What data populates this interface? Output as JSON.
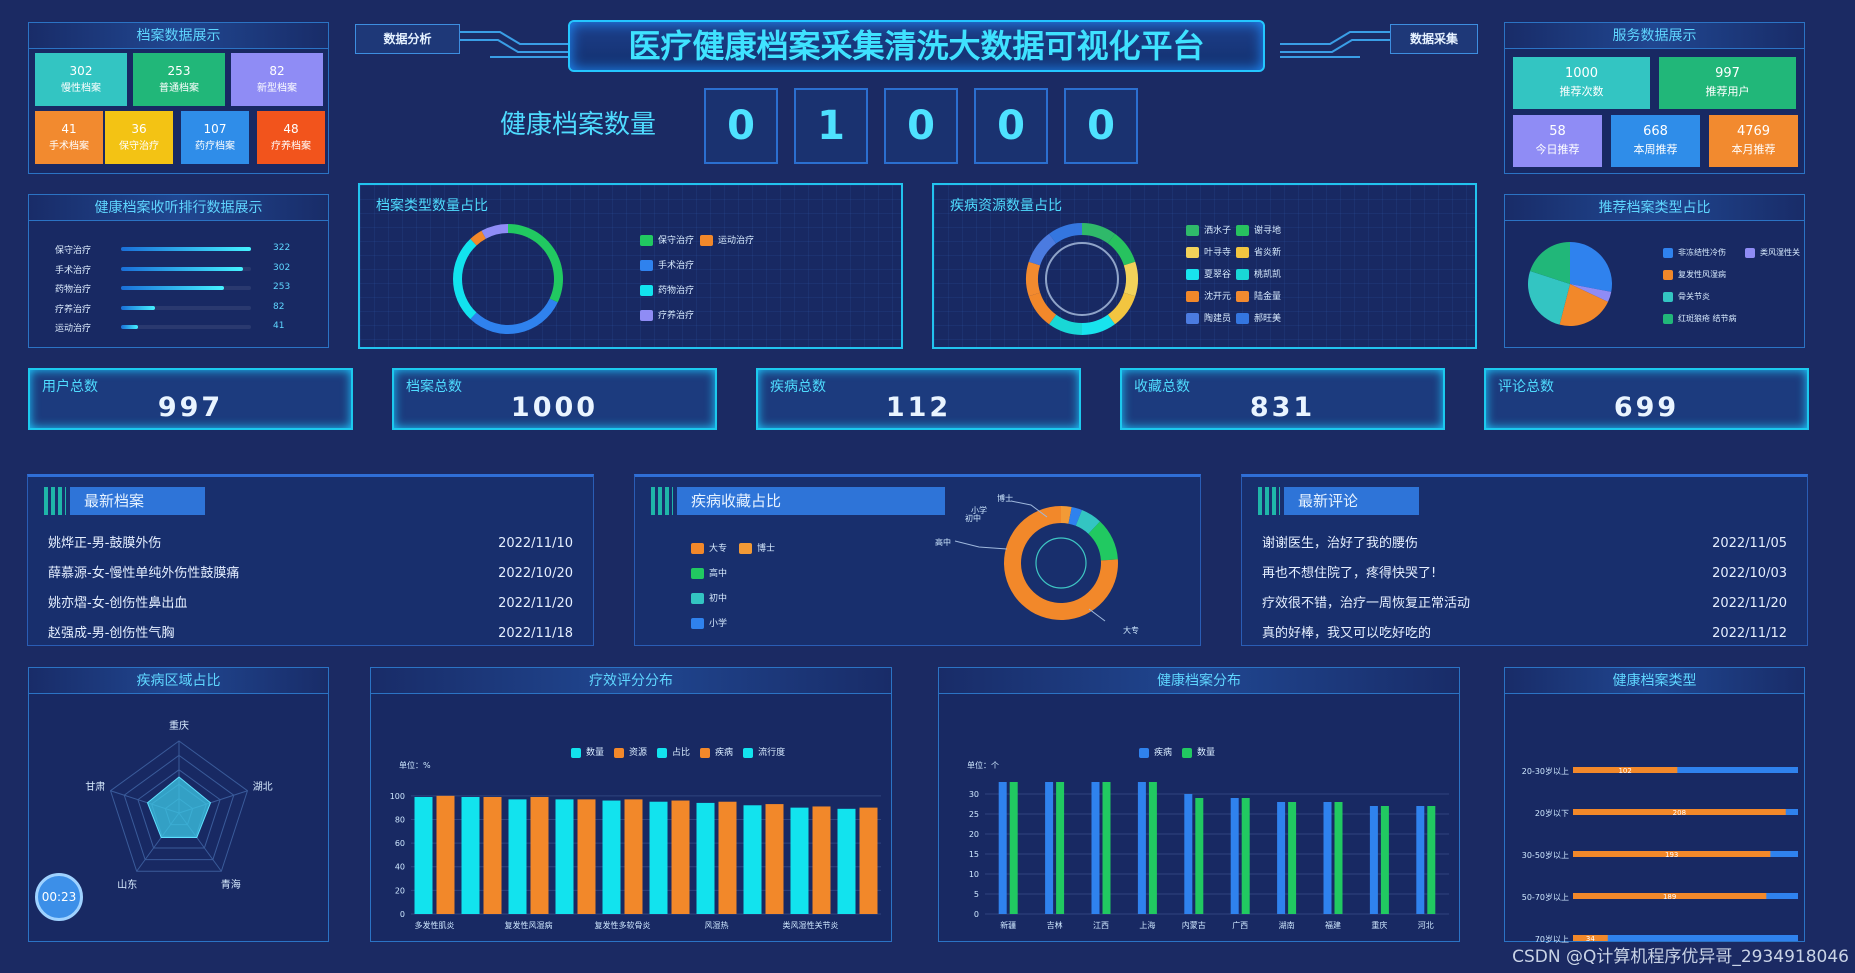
{
  "header": {
    "title": "医疗健康档案采集清洗大数据可视化平台",
    "left_button": "数据分析",
    "right_button": "数据采集"
  },
  "archive_count": {
    "label": "健康档案数量",
    "digits": [
      "0",
      "1",
      "0",
      "0",
      "0"
    ]
  },
  "archive_panel": {
    "title": "档案数据展示",
    "tiles": [
      {
        "value": "302",
        "label": "慢性档案",
        "color": "#33c5c2"
      },
      {
        "value": "253",
        "label": "普通档案",
        "color": "#21b779"
      },
      {
        "value": "82",
        "label": "新型档案",
        "color": "#8f8cf5"
      },
      {
        "value": "41",
        "label": "手术档案",
        "color": "#f28a2f"
      },
      {
        "value": "36",
        "label": "保守治疗",
        "color": "#f3c314"
      },
      {
        "value": "107",
        "label": "药疗档案",
        "color": "#2f8de9"
      },
      {
        "value": "48",
        "label": "疗养档案",
        "color": "#f2541c"
      }
    ]
  },
  "service_panel": {
    "title": "服务数据展示",
    "tiles": [
      {
        "value": "1000",
        "label": "推荐次数",
        "color": "#33c5c2"
      },
      {
        "value": "997",
        "label": "推荐用户",
        "color": "#21b779"
      },
      {
        "value": "58",
        "label": "今日推荐",
        "color": "#8f8cf5"
      },
      {
        "value": "668",
        "label": "本周推荐",
        "color": "#2f8de9"
      },
      {
        "value": "4769",
        "label": "本月推荐",
        "color": "#f28a2f"
      }
    ]
  },
  "rank_panel": {
    "title": "健康档案收听排行数据展示",
    "items": [
      {
        "label": "保守治疗",
        "value": "322",
        "ratio": 1.0
      },
      {
        "label": "手术治疗",
        "value": "302",
        "ratio": 0.94
      },
      {
        "label": "药物治疗",
        "value": "253",
        "ratio": 0.79
      },
      {
        "label": "疗养治疗",
        "value": "82",
        "ratio": 0.26
      },
      {
        "label": "运动治疗",
        "value": "41",
        "ratio": 0.13
      }
    ]
  },
  "type_share": {
    "title": "档案类型数量占比",
    "legend": [
      {
        "label": "保守治疗",
        "color": "#21c961"
      },
      {
        "label": "运动治疗",
        "color": "#f2882a"
      },
      {
        "label": "手术治疗",
        "color": "#2f82ee"
      },
      {
        "label": "药物治疗",
        "color": "#12e3ee"
      },
      {
        "label": "疗养治疗",
        "color": "#8f8cf5"
      }
    ]
  },
  "disease_share": {
    "title": "疾病资源数量占比",
    "legend": [
      {
        "label": "洒水子",
        "color": "#2fb96a"
      },
      {
        "label": "谢寻地",
        "color": "#27c25f"
      },
      {
        "label": "叶寻寺",
        "color": "#f2d25a"
      },
      {
        "label": "省炎新",
        "color": "#f2c540"
      },
      {
        "label": "夏翠谷",
        "color": "#18e3ee"
      },
      {
        "label": "桃凯凯",
        "color": "#19d7d6"
      },
      {
        "label": "沈开元",
        "color": "#f2882a"
      },
      {
        "label": "陆金量",
        "color": "#f28a2f"
      },
      {
        "label": "陶建员",
        "color": "#4b7be0"
      },
      {
        "label": "郝旺美",
        "color": "#3476e0"
      }
    ]
  },
  "recommend_share": {
    "title": "推荐档案类型占比",
    "legend": [
      {
        "label": "非冻结性冷伤",
        "color": "#2f82ee"
      },
      {
        "label": "类风湿性关",
        "color": "#8f8cf5"
      },
      {
        "label": "复发性风湿病",
        "color": "#f2882a"
      },
      {
        "label": "骨关节炎",
        "color": "#33c5c2"
      },
      {
        "label": "红斑狼疮 结节病",
        "color": "#21b779"
      }
    ]
  },
  "stats": [
    {
      "label": "用户总数",
      "value": "997"
    },
    {
      "label": "档案总数",
      "value": "1000"
    },
    {
      "label": "疾病总数",
      "value": "112"
    },
    {
      "label": "收藏总数",
      "value": "831"
    },
    {
      "label": "评论总数",
      "value": "699"
    }
  ],
  "latest_archives": {
    "title": "最新档案",
    "rows": [
      {
        "text": "姚烨正-男-鼓膜外伤",
        "date": "2022/11/10"
      },
      {
        "text": "薛慕源-女-慢性单纯外伤性鼓膜痛",
        "date": "2022/10/20"
      },
      {
        "text": "姚亦熠-女-创伤性鼻出血",
        "date": "2022/11/20"
      },
      {
        "text": "赵强成-男-创伤性气胸",
        "date": "2022/11/18"
      }
    ]
  },
  "favorite_share": {
    "title": "疾病收藏占比",
    "legend": [
      {
        "label": "大专",
        "color": "#f2882a"
      },
      {
        "label": "博士",
        "color": "#f29a36"
      },
      {
        "label": "高中",
        "color": "#21c961"
      },
      {
        "label": "初中",
        "color": "#33c5c2"
      },
      {
        "label": "小学",
        "color": "#2f82ee"
      }
    ],
    "callouts": [
      "博士",
      "小学",
      "初中",
      "高中",
      "大专"
    ]
  },
  "latest_comments": {
    "title": "最新评论",
    "rows": [
      {
        "text": "谢谢医生，治好了我的腰伤",
        "date": "2022/11/05"
      },
      {
        "text": "再也不想住院了，疼得快哭了!",
        "date": "2022/10/03"
      },
      {
        "text": "疗效很不错，治疗一周恢复正常活动",
        "date": "2022/11/20"
      },
      {
        "text": "真的好棒，我又可以吃好吃的",
        "date": "2022/11/12"
      }
    ]
  },
  "region_panel": {
    "title": "疾病区域占比",
    "labels": [
      "重庆",
      "湖北",
      "青海",
      "山东",
      "甘肃"
    ],
    "timer": "00:23"
  },
  "efficacy_panel": {
    "title": "疗效评分分布",
    "unit": "单位：%",
    "legend": [
      {
        "label": "数量",
        "color": "#12e3ee"
      },
      {
        "label": "资源",
        "color": "#f2882a"
      },
      {
        "label": "占比",
        "color": "#12e3ee"
      },
      {
        "label": "疾病",
        "color": "#f2882a"
      },
      {
        "label": "流行度",
        "color": "#12e3ee"
      }
    ]
  },
  "archive_dist_panel": {
    "title": "健康档案分布",
    "unit": "单位：个",
    "legend": [
      {
        "label": "疾病",
        "color": "#2f82ee"
      },
      {
        "label": "数量",
        "color": "#21c961"
      }
    ]
  },
  "archive_type_panel": {
    "title": "健康档案类型"
  },
  "watermark": "CSDN @Q计算机程序优异哥_2934918046",
  "chart_data": [
    {
      "type": "bar",
      "title": "疗效评分分布",
      "ylabel": "单位：%",
      "ylim": [
        0,
        110
      ],
      "categories": [
        "多发性肌炎",
        "",
        "复发性风湿病",
        "",
        "复发性多软骨炎",
        "",
        "风湿热",
        "",
        "类风湿性关节炎",
        ""
      ],
      "series": [
        {
          "name": "资源",
          "color": "#f2882a",
          "values": [
            100,
            99,
            99,
            97,
            97,
            96,
            95,
            93,
            91,
            90
          ]
        },
        {
          "name": "数量",
          "color": "#12e3ee",
          "values": [
            99,
            99,
            97,
            97,
            96,
            95,
            94,
            92,
            90,
            89
          ]
        }
      ]
    },
    {
      "type": "bar",
      "title": "健康档案分布",
      "ylabel": "单位：个",
      "ylim": [
        0,
        35
      ],
      "categories": [
        "新疆",
        "吉林",
        "江西",
        "上海",
        "内蒙古",
        "广西",
        "湖南",
        "福建",
        "重庆",
        "河北"
      ],
      "series": [
        {
          "name": "疾病",
          "color": "#2f82ee",
          "values": [
            33,
            33,
            33,
            33,
            30,
            29,
            28,
            28,
            27,
            27
          ]
        },
        {
          "name": "数量",
          "color": "#21c961",
          "values": [
            33,
            33,
            33,
            33,
            29,
            29,
            28,
            28,
            27,
            27
          ]
        }
      ]
    },
    {
      "type": "bar",
      "title": "健康档案类型",
      "categories": [
        "20-30岁以上",
        "20岁以下",
        "30-50岁以上",
        "50-70岁以上",
        "70岁以上"
      ],
      "values": [
        102,
        208,
        193,
        189,
        34
      ]
    }
  ]
}
